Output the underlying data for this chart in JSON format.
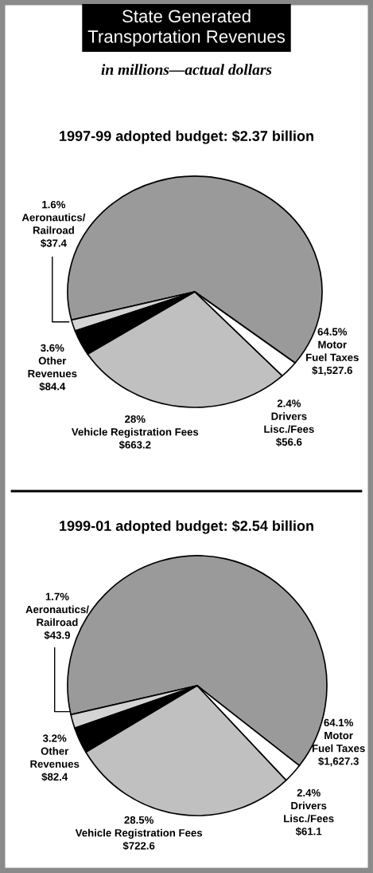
{
  "chart_data": [
    {
      "type": "pie",
      "title": "State Generated\nTransportation Revenues",
      "subtitle": "in millions—actual dollars",
      "annotations": [
        "1997-99 adopted budget: $2.37 billion",
        "64.5%",
        "1.6%",
        "3.6%",
        "28%",
        "2.4%"
      ],
      "categories": [
        "Motor\nFuel Taxes",
        "Aeronautics/\nRailroad",
        "Other\nRevenues",
        "Vehicle Registration Fees",
        "Drivers\nLisc./Fees"
      ],
      "values": [
        1527.6,
        37.4,
        84.4,
        663.2,
        56.6
      ],
      "value_labels": [
        "$1,527.6",
        "$37.4",
        "$84.4",
        "$663.2",
        "$56.6"
      ],
      "colors": [
        "#9a9a9a",
        "#d4d4d4",
        "#000000",
        "#c0c0c0",
        "#ffffff"
      ]
    },
    {
      "type": "pie",
      "annotations": [
        "1999-01 adopted budget: $2.54 billion",
        "64.1%",
        "1.7%",
        "3.2%",
        "28.5%",
        "2.4%"
      ],
      "categories": [
        "Motor\nFuel Taxes",
        "Aeronautics/\nRailroad",
        "Other\nRevenues",
        "Vehicle Registration Fees",
        "Drivers\nLisc./Fees"
      ],
      "values": [
        1627.3,
        43.9,
        82.4,
        722.6,
        61.1
      ],
      "value_labels": [
        "$1,627.3",
        "$43.9",
        "$82.4",
        "$722.6",
        "$61.1"
      ],
      "colors": [
        "#9a9a9a",
        "#d4d4d4",
        "#000000",
        "#c0c0c0",
        "#ffffff"
      ]
    }
  ]
}
